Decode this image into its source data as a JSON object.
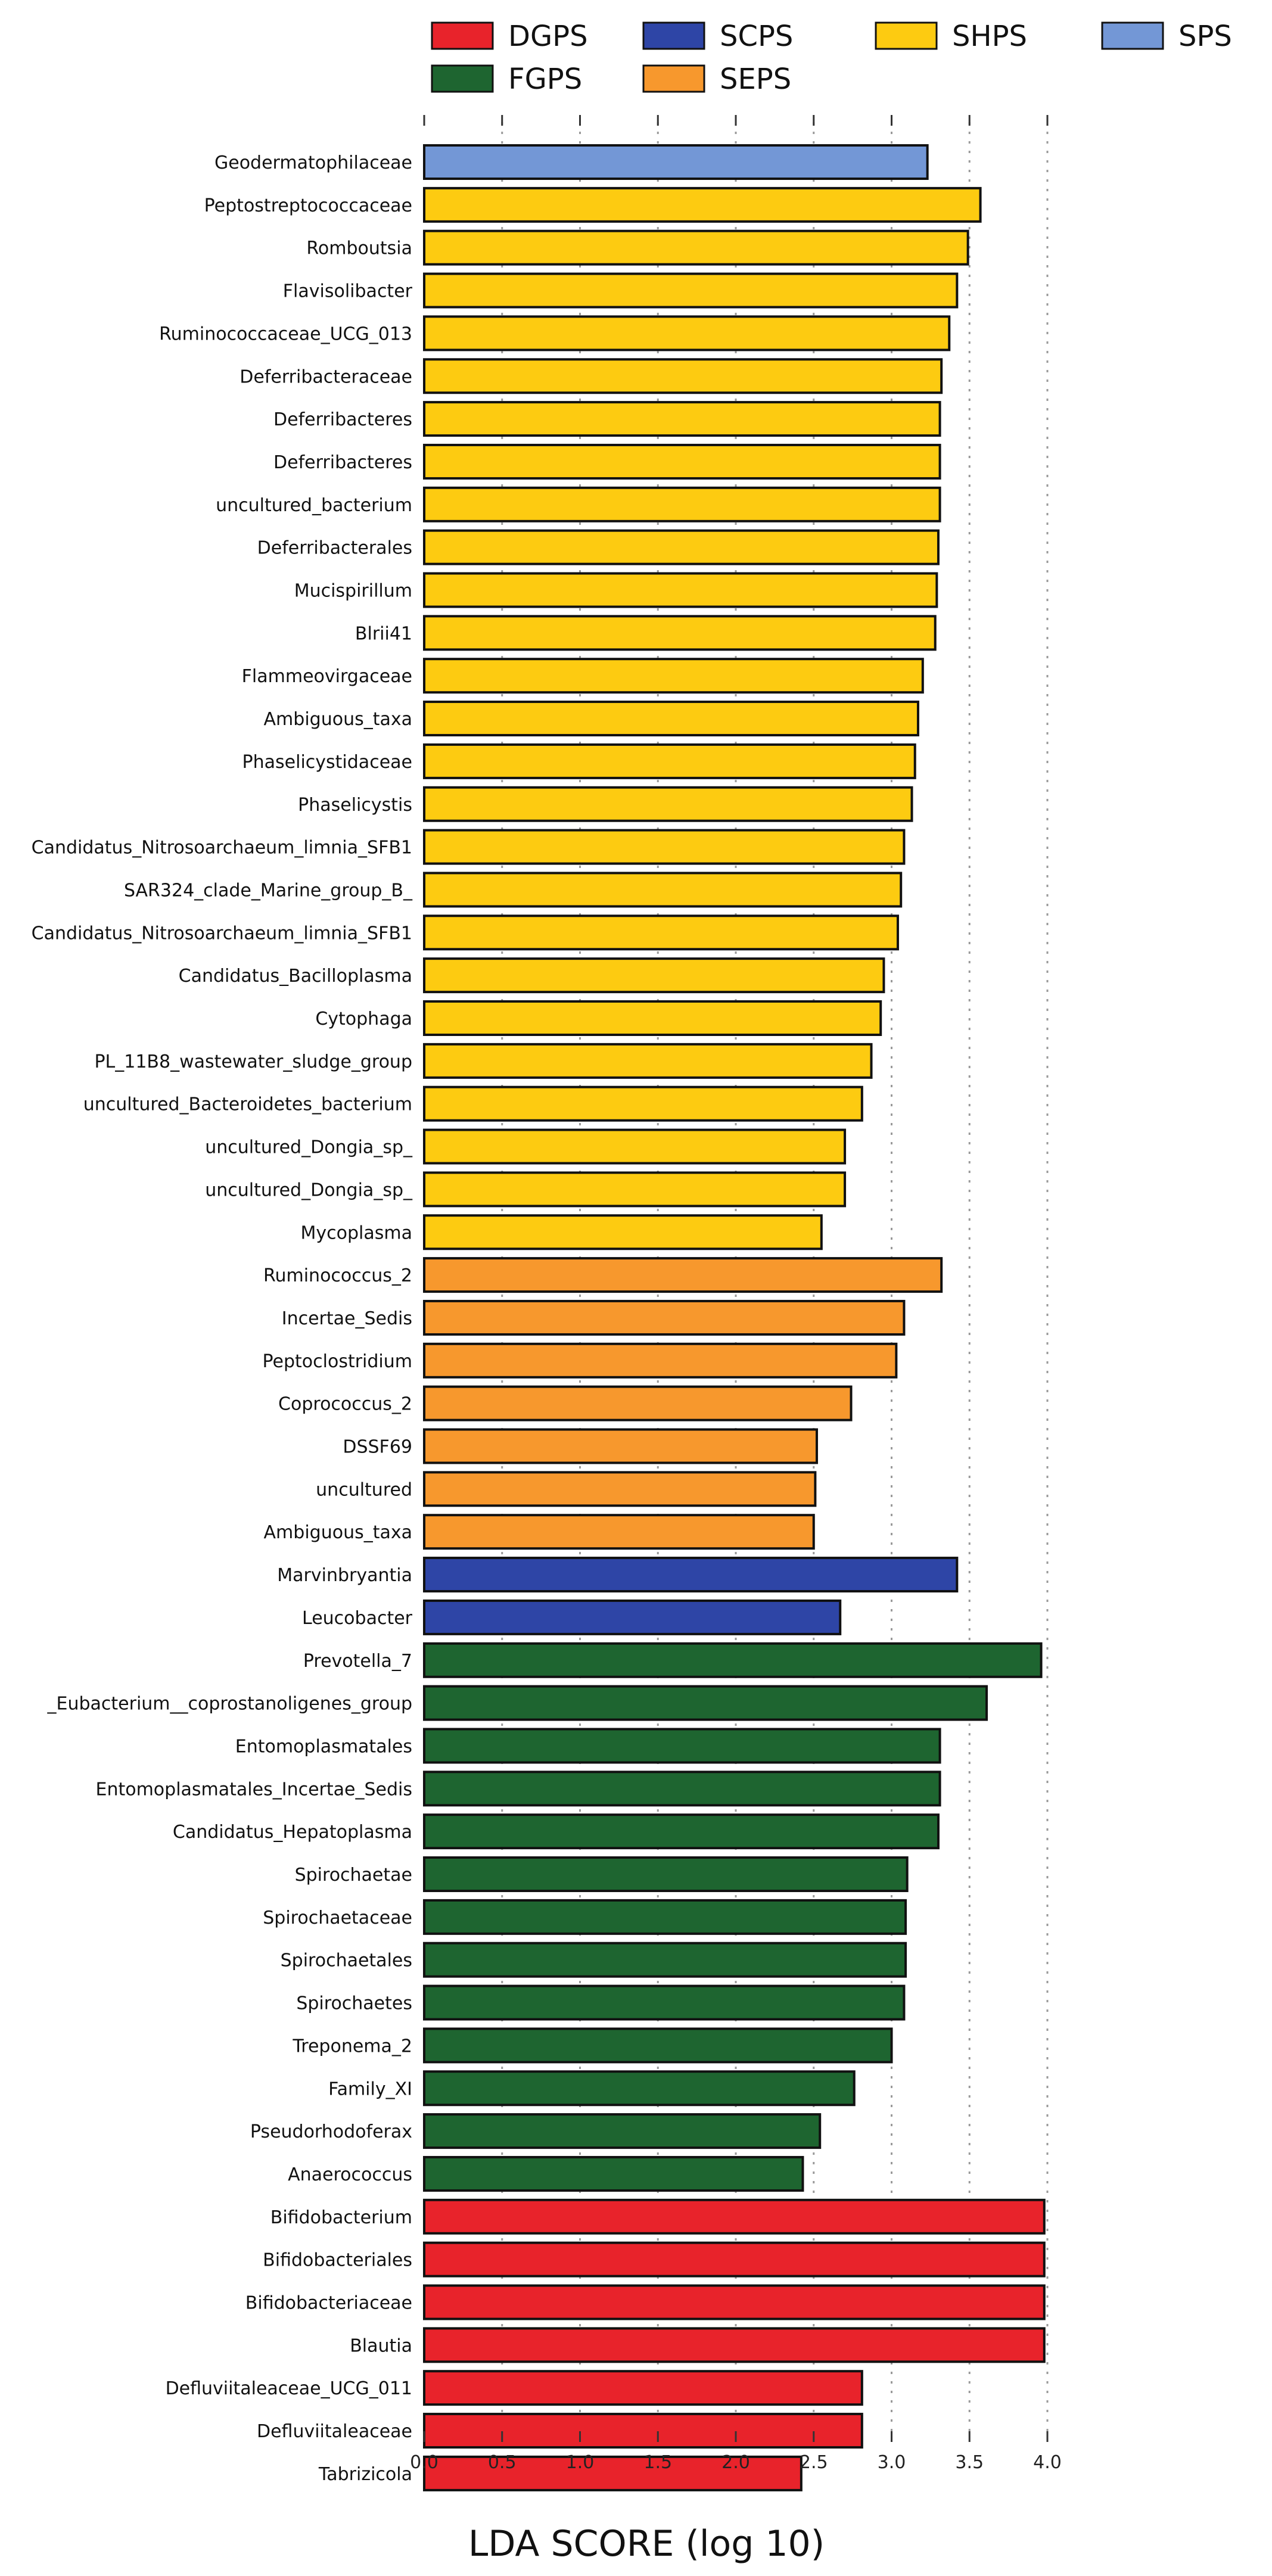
{
  "chart_data": {
    "type": "bar",
    "orientation": "horizontal",
    "xlabel": "LDA SCORE (log 10)",
    "xlim": [
      0,
      4.0
    ],
    "xticks": [
      "0.0",
      "0.5",
      "1.0",
      "1.5",
      "2.0",
      "2.5",
      "3.0",
      "3.5",
      "4.0"
    ],
    "grid": "vertical dotted",
    "legend_position": "top",
    "groups": [
      {
        "name": "DGPS",
        "color": "#e8232b"
      },
      {
        "name": "FGPS",
        "color": "#1e6530"
      },
      {
        "name": "SCPS",
        "color": "#2e45a6"
      },
      {
        "name": "SEPS",
        "color": "#f7982d"
      },
      {
        "name": "SHPS",
        "color": "#fdcb11"
      },
      {
        "name": "SPS",
        "color": "#7397d6"
      }
    ],
    "legend_order": [
      "DGPS",
      "SCPS",
      "SHPS",
      "SPS",
      "FGPS",
      "SEPS"
    ],
    "bars": [
      {
        "label": "Geodermatophilaceae",
        "value": 3.23,
        "group": "SPS"
      },
      {
        "label": "Peptostreptococcaceae",
        "value": 3.57,
        "group": "SHPS"
      },
      {
        "label": "Romboutsia",
        "value": 3.49,
        "group": "SHPS"
      },
      {
        "label": "Flavisolibacter",
        "value": 3.42,
        "group": "SHPS"
      },
      {
        "label": "Ruminococcaceae_UCG_013",
        "value": 3.37,
        "group": "SHPS"
      },
      {
        "label": "Deferribacteraceae",
        "value": 3.32,
        "group": "SHPS"
      },
      {
        "label": "Deferribacteres",
        "value": 3.31,
        "group": "SHPS"
      },
      {
        "label": "Deferribacteres",
        "value": 3.31,
        "group": "SHPS"
      },
      {
        "label": "uncultured_bacterium",
        "value": 3.31,
        "group": "SHPS"
      },
      {
        "label": "Deferribacterales",
        "value": 3.3,
        "group": "SHPS"
      },
      {
        "label": "Mucispirillum",
        "value": 3.29,
        "group": "SHPS"
      },
      {
        "label": "Blrii41",
        "value": 3.28,
        "group": "SHPS"
      },
      {
        "label": "Flammeovirgaceae",
        "value": 3.2,
        "group": "SHPS"
      },
      {
        "label": "Ambiguous_taxa",
        "value": 3.17,
        "group": "SHPS"
      },
      {
        "label": "Phaselicystidaceae",
        "value": 3.15,
        "group": "SHPS"
      },
      {
        "label": "Phaselicystis",
        "value": 3.13,
        "group": "SHPS"
      },
      {
        "label": "Candidatus_Nitrosoarchaeum_limnia_SFB1",
        "value": 3.08,
        "group": "SHPS"
      },
      {
        "label": "SAR324_clade_Marine_group_B_",
        "value": 3.06,
        "group": "SHPS"
      },
      {
        "label": "Candidatus_Nitrosoarchaeum_limnia_SFB1",
        "value": 3.04,
        "group": "SHPS"
      },
      {
        "label": "Candidatus_Bacilloplasma",
        "value": 2.95,
        "group": "SHPS"
      },
      {
        "label": "Cytophaga",
        "value": 2.93,
        "group": "SHPS"
      },
      {
        "label": "PL_11B8_wastewater_sludge_group",
        "value": 2.87,
        "group": "SHPS"
      },
      {
        "label": "uncultured_Bacteroidetes_bacterium",
        "value": 2.81,
        "group": "SHPS"
      },
      {
        "label": "uncultured_Dongia_sp_",
        "value": 2.7,
        "group": "SHPS"
      },
      {
        "label": "uncultured_Dongia_sp_",
        "value": 2.7,
        "group": "SHPS"
      },
      {
        "label": "Mycoplasma",
        "value": 2.55,
        "group": "SHPS"
      },
      {
        "label": "Ruminococcus_2",
        "value": 3.32,
        "group": "SEPS"
      },
      {
        "label": "Incertae_Sedis",
        "value": 3.08,
        "group": "SEPS"
      },
      {
        "label": "Peptoclostridium",
        "value": 3.03,
        "group": "SEPS"
      },
      {
        "label": "Coprococcus_2",
        "value": 2.74,
        "group": "SEPS"
      },
      {
        "label": "DSSF69",
        "value": 2.52,
        "group": "SEPS"
      },
      {
        "label": "uncultured",
        "value": 2.51,
        "group": "SEPS"
      },
      {
        "label": "Ambiguous_taxa",
        "value": 2.5,
        "group": "SEPS"
      },
      {
        "label": "Marvinbryantia",
        "value": 3.42,
        "group": "SCPS"
      },
      {
        "label": "Leucobacter",
        "value": 2.67,
        "group": "SCPS"
      },
      {
        "label": "Prevotella_7",
        "value": 3.96,
        "group": "FGPS"
      },
      {
        "label": "_Eubacterium__coprostanoligenes_group",
        "value": 3.61,
        "group": "FGPS"
      },
      {
        "label": "Entomoplasmatales",
        "value": 3.31,
        "group": "FGPS"
      },
      {
        "label": "Entomoplasmatales_Incertae_Sedis",
        "value": 3.31,
        "group": "FGPS"
      },
      {
        "label": "Candidatus_Hepatoplasma",
        "value": 3.3,
        "group": "FGPS"
      },
      {
        "label": "Spirochaetae",
        "value": 3.1,
        "group": "FGPS"
      },
      {
        "label": "Spirochaetaceae",
        "value": 3.09,
        "group": "FGPS"
      },
      {
        "label": "Spirochaetales",
        "value": 3.09,
        "group": "FGPS"
      },
      {
        "label": "Spirochaetes",
        "value": 3.08,
        "group": "FGPS"
      },
      {
        "label": "Treponema_2",
        "value": 3.0,
        "group": "FGPS"
      },
      {
        "label": "Family_XI",
        "value": 2.76,
        "group": "FGPS"
      },
      {
        "label": "Pseudorhodoferax",
        "value": 2.54,
        "group": "FGPS"
      },
      {
        "label": "Anaerococcus",
        "value": 2.43,
        "group": "FGPS"
      },
      {
        "label": "Bifidobacterium",
        "value": 3.98,
        "group": "DGPS"
      },
      {
        "label": "Bifidobacteriales",
        "value": 3.98,
        "group": "DGPS"
      },
      {
        "label": "Bifidobacteriaceae",
        "value": 3.98,
        "group": "DGPS"
      },
      {
        "label": "Blautia",
        "value": 3.98,
        "group": "DGPS"
      },
      {
        "label": "Defluviitaleaceae_UCG_011",
        "value": 2.81,
        "group": "DGPS"
      },
      {
        "label": "Defluviitaleaceae",
        "value": 2.81,
        "group": "DGPS"
      },
      {
        "label": "Tabrizicola",
        "value": 2.42,
        "group": "DGPS"
      }
    ]
  }
}
